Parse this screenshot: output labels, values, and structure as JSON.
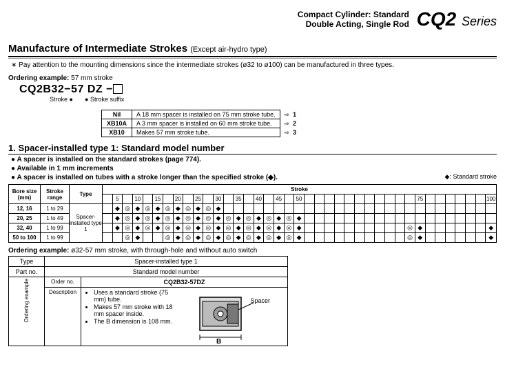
{
  "header": {
    "line1": "Compact Cylinder: Standard",
    "line2": "Double Acting, Single Rod",
    "model": "CQ2",
    "series": "Series"
  },
  "section_title": "Manufacture of Intermediate Strokes",
  "section_sub": "(Except air-hydro type)",
  "top_note": "Pay attention to the mounting dimensions since the intermediate strokes (ø32 to ø100) can be manufactured in three types.",
  "ordering": {
    "label": "Ordering example:",
    "example": "57 mm stroke",
    "code_prefix": "CQ2B32",
    "code_dash": "−",
    "code_stroke": "57",
    "code_suffix": "DZ −",
    "stroke_label": "Stroke",
    "suffix_label": "Stroke suffix"
  },
  "suffix_rows": [
    {
      "key": "Nil",
      "desc": "A 18 mm spacer is installed on 75 mm stroke tube.",
      "num": "1"
    },
    {
      "key": "XB10A",
      "desc": "A 3 mm spacer is installed on 60 mm stroke tube.",
      "num": "2"
    },
    {
      "key": "XB10",
      "desc": "Makes 57 mm stroke tube.",
      "num": "3"
    }
  ],
  "sub_heading": "1. Spacer-installed type 1: Standard model number",
  "bullets": [
    "A spacer is installed on the standard strokes (page 774).",
    "Available in 1 mm increments",
    "A spacer is installed on tubes with a stroke longer than the specified stroke (◆)."
  ],
  "legend": "◆: Standard stroke",
  "stroke_table": {
    "col_headers": [
      "Bore size (mm)",
      "Stroke range",
      "Type"
    ],
    "stroke_header": "Stroke",
    "ticks": [
      "",
      "5",
      "",
      "10",
      "",
      "15",
      "",
      "20",
      "",
      "25",
      "",
      "30",
      "",
      "35",
      "",
      "40",
      "",
      "45",
      "",
      "50",
      "",
      "",
      "",
      "",
      "",
      "",
      "",
      "",
      "",
      "",
      "",
      "75",
      "",
      "",
      "",
      "",
      "",
      "",
      "100"
    ],
    "type_label": "Spacer-installed type 1",
    "rows": [
      {
        "bore": "12, 16",
        "range": "1 to 29",
        "cells": [
          "",
          "d",
          "o",
          "d",
          "o",
          "d",
          "o",
          "d",
          "o",
          "d",
          "o",
          "d",
          "",
          "",
          "",
          "",
          "",
          "",
          "",
          "",
          "",
          "",
          "",
          "",
          "",
          "",
          "",
          "",
          "",
          "",
          "",
          "",
          "",
          "",
          "",
          "",
          "",
          "",
          ""
        ]
      },
      {
        "bore": "20, 25",
        "range": "1 to 49",
        "cells": [
          "",
          "d",
          "o",
          "d",
          "o",
          "d",
          "o",
          "d",
          "o",
          "d",
          "o",
          "d",
          "o",
          "d",
          "o",
          "d",
          "o",
          "d",
          "o",
          "d",
          "",
          "",
          "",
          "",
          "",
          "",
          "",
          "",
          "",
          "",
          "",
          "",
          "",
          "",
          "",
          "",
          "",
          "",
          ""
        ]
      },
      {
        "bore": "32, 40",
        "range": "1 to 99",
        "cells": [
          "",
          "d",
          "o",
          "d",
          "o",
          "d",
          "o",
          "d",
          "o",
          "d",
          "o",
          "d",
          "o",
          "d",
          "o",
          "d",
          "o",
          "d",
          "o",
          "d",
          "",
          "",
          "",
          "",
          "",
          "",
          "",
          "",
          "",
          "",
          "o",
          "d",
          "",
          "",
          "",
          "",
          "",
          "",
          "d"
        ]
      },
      {
        "bore": "50 to 100",
        "range": "1 to 99",
        "cells": [
          "",
          "",
          "o",
          "d",
          "",
          "",
          "o",
          "d",
          "o",
          "d",
          "o",
          "d",
          "o",
          "d",
          "o",
          "d",
          "o",
          "d",
          "o",
          "d",
          "",
          "",
          "",
          "",
          "",
          "",
          "",
          "",
          "",
          "",
          "o",
          "d",
          "",
          "",
          "",
          "",
          "",
          "",
          "d"
        ]
      }
    ]
  },
  "ordering2": {
    "label": "Ordering example:",
    "sub": "ø32-57 mm stroke, with through-hole and without auto switch",
    "rows": {
      "type": "Type",
      "type_v": "Spacer-installed type 1",
      "part": "Part no.",
      "part_v": "Standard model number",
      "order": "Order no.",
      "order_v": "CQ2B32-57DZ",
      "desc": "Description",
      "vert": "Ordering example"
    },
    "desc_items": [
      "Uses a standard stroke (75 mm) tube.",
      "Makes 57 mm stroke with 18 mm spacer inside.",
      "The B dimension is 108 mm."
    ],
    "spacer_label": "Spacer",
    "b_label": "B"
  }
}
